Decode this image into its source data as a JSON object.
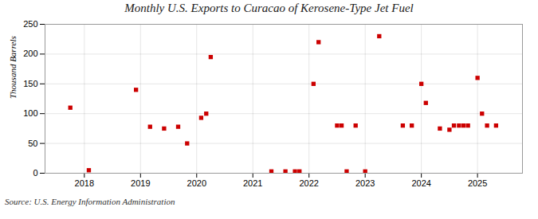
{
  "chart_data": {
    "type": "scatter",
    "title": "Monthly U.S. Exports to Curacao of Kerosene-Type Jet Fuel",
    "ylabel": "Thousand Barrels",
    "source": "Source: U.S. Energy Information Administration",
    "color": "#cc0000",
    "marker": "square",
    "grid": true,
    "xlim": [
      2017.3,
      2025.8
    ],
    "xticks": [
      2018,
      2019,
      2020,
      2021,
      2022,
      2023,
      2024,
      2025
    ],
    "ylim": [
      0,
      250
    ],
    "yticks": [
      0,
      50,
      100,
      150,
      200,
      250
    ],
    "x": [
      2017.75,
      2018.08,
      2018.92,
      2019.17,
      2019.42,
      2019.67,
      2019.83,
      2020.08,
      2020.17,
      2020.25,
      2021.33,
      2021.58,
      2021.75,
      2021.83,
      2022.08,
      2022.17,
      2022.5,
      2022.58,
      2022.67,
      2022.83,
      2023.0,
      2023.25,
      2023.67,
      2023.83,
      2024.0,
      2024.08,
      2024.33,
      2024.5,
      2024.58,
      2024.67,
      2024.75,
      2024.83,
      2025.0,
      2025.08,
      2025.17,
      2025.33
    ],
    "values": [
      110,
      5,
      140,
      78,
      75,
      78,
      50,
      93,
      100,
      195,
      3,
      3,
      3,
      3,
      150,
      220,
      80,
      80,
      3,
      80,
      3,
      230,
      80,
      80,
      150,
      118,
      75,
      73,
      80,
      80,
      80,
      80,
      160,
      100,
      80,
      80
    ]
  }
}
